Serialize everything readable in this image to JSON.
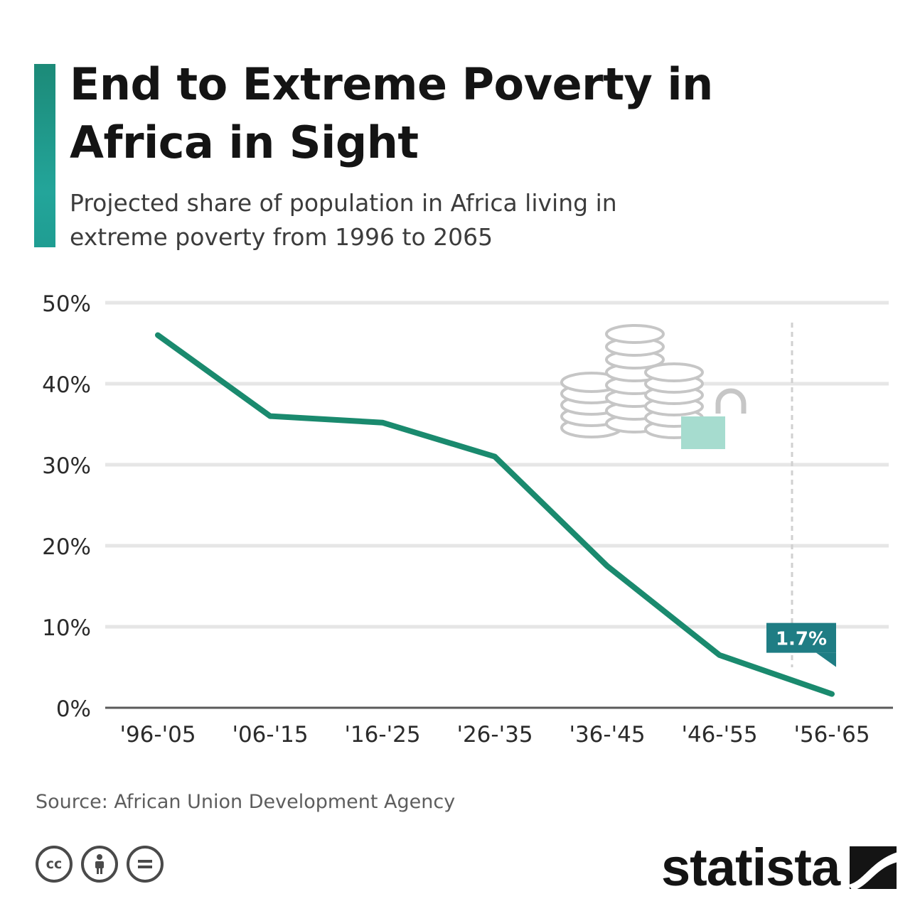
{
  "title": "End to Extreme Poverty in Africa in Sight",
  "subtitle": "Projected share of population in Africa living in extreme poverty from 1996 to 2065",
  "source": "Source: African Union Development Agency",
  "brand": "statista",
  "license_icons": [
    "cc-icon",
    "attribution-icon",
    "no-derivatives-icon"
  ],
  "colors": {
    "accent": "#1f9d92",
    "line": "#1a8a6e",
    "annotation": "#1f7d84",
    "grid": "#e6e6e6"
  },
  "chart_data": {
    "type": "line",
    "title": "End to Extreme Poverty in Africa in Sight",
    "subtitle": "Projected share of population in Africa living in extreme poverty from 1996 to 2065",
    "categories": [
      "'96-'05",
      "'06-'15",
      "'16-'25",
      "'26-'35",
      "'36-'45",
      "'46-'55",
      "'56-'65"
    ],
    "series": [
      {
        "values": [
          46,
          36,
          35.2,
          31,
          17.5,
          6.5,
          1.7
        ]
      }
    ],
    "ylim": [
      0,
      50
    ],
    "yticks": [
      0,
      10,
      20,
      30,
      40,
      50
    ],
    "ytick_labels": [
      "0%",
      "10%",
      "20%",
      "30%",
      "40%",
      "50%"
    ],
    "grid": true,
    "annotation": {
      "category": "'56-'65",
      "value": 1.7,
      "label": "1.7%"
    }
  }
}
